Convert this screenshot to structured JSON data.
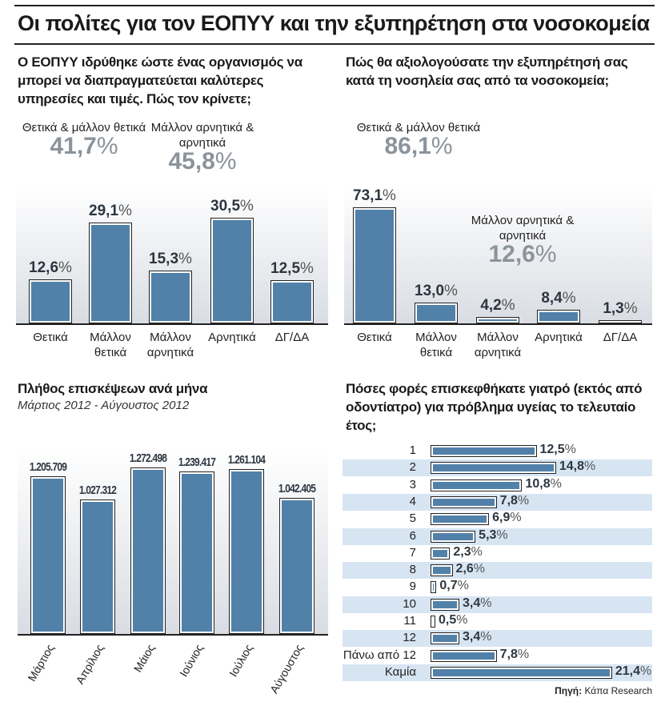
{
  "title": "Οι πολίτες για τον ΕΟΠΥΥ και την εξυπηρέτηση στα νοσοκομεία",
  "source_label": "Πηγή:",
  "source": "Κάπα Research",
  "chart_data": [
    {
      "type": "bar",
      "title": "Ο ΕΟΠΥΥ ιδρύθηκε ώστε ένας οργανισμός να μπορεί να διαπραγματεύεται καλύτερες υπηρεσίες και τιμές. Πώς τον κρίνετε;",
      "categories": [
        "Θετικά",
        "Μάλλον θετικά",
        "Μάλλον αρνητικά",
        "Αρνητικά",
        "ΔΓ/ΔΑ"
      ],
      "values": [
        12.6,
        29.1,
        15.3,
        30.5,
        12.5
      ],
      "labels": [
        "12,6",
        "29,1",
        "15,3",
        "30,5",
        "12,5"
      ],
      "unit": "%",
      "groups": [
        {
          "label": "Θετικά & μάλλον θετικά",
          "value": "41,7"
        },
        {
          "label": "Μάλλον αρνητικά & αρνητικά",
          "value": "45,8"
        }
      ],
      "color": "#5181a9"
    },
    {
      "type": "bar",
      "title": "Πώς θα αξιολογούσατε την εξυπηρέτησή σας κατά τη νοσηλεία σας από τα νοσοκομεία;",
      "categories": [
        "Θετικά",
        "Μάλλον θετικά",
        "Μάλλον αρνητικά",
        "Αρνητικά",
        "ΔΓ/ΔΑ"
      ],
      "values": [
        73.1,
        13.0,
        4.2,
        8.4,
        1.3
      ],
      "labels": [
        "73,1",
        "13,0",
        "4,2",
        "8,4",
        "1,3"
      ],
      "unit": "%",
      "groups": [
        {
          "label": "Θετικά & μάλλον θετικά",
          "value": "86,1"
        },
        {
          "label": "Μάλλον αρνητικά & αρνητικά",
          "value": "12,6"
        }
      ],
      "color": "#5181a9"
    },
    {
      "type": "bar",
      "title": "Πλήθος επισκέψεων ανά μήνα",
      "subtitle": "Μάρτιος 2012 - Αύγουστος 2012",
      "categories": [
        "Μάρτιος",
        "Απρίλιος",
        "Μάιος",
        "Ιούνιος",
        "Ιούλιος",
        "Αύγουστος"
      ],
      "values": [
        1205709,
        1027312,
        1272498,
        1239417,
        1261104,
        1042405
      ],
      "labels": [
        "1.205.709",
        "1.027.312",
        "1.272.498",
        "1.239.417",
        "1.261.104",
        "1.042.405"
      ],
      "color": "#5181a9"
    },
    {
      "type": "bar",
      "orientation": "horizontal",
      "title": "Πόσες φορές επισκεφθήκατε γιατρό (εκτός από οδοντίατρο) για πρόβλημα υγείας το τελευταίο έτος;",
      "categories": [
        "1",
        "2",
        "3",
        "4",
        "5",
        "6",
        "7",
        "8",
        "9",
        "10",
        "11",
        "12",
        "Πάνω από 12",
        "Καμία"
      ],
      "values": [
        12.5,
        14.8,
        10.8,
        7.8,
        6.9,
        5.3,
        2.3,
        2.6,
        0.7,
        3.4,
        0.5,
        3.4,
        7.8,
        21.4
      ],
      "labels": [
        "12,5",
        "14,8",
        "10,8",
        "7,8",
        "6,9",
        "5,3",
        "2,3",
        "2,6",
        "0,7",
        "3,4",
        "0,5",
        "3,4",
        "7,8",
        "21,4"
      ],
      "unit": "%",
      "row_shading": "#d7e5f3",
      "color": "#5181a9"
    }
  ]
}
